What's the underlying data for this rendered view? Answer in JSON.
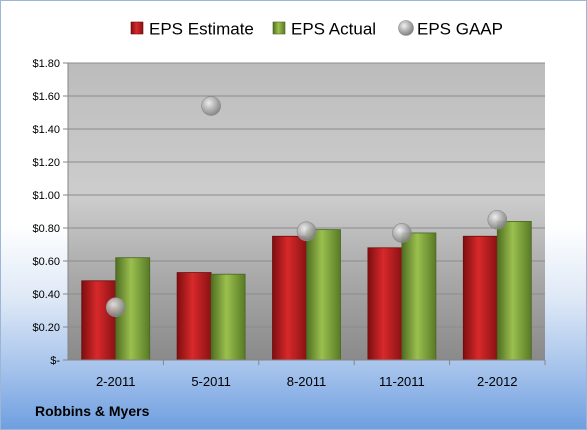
{
  "chart_data": {
    "type": "bar",
    "categories": [
      "2-2011",
      "5-2011",
      "8-2011",
      "11-2011",
      "2-2012"
    ],
    "series": [
      {
        "name": "EPS Estimate",
        "kind": "bar",
        "color": "#c0191c",
        "values": [
          0.48,
          0.53,
          0.75,
          0.68,
          0.75
        ]
      },
      {
        "name": "EPS Actual",
        "kind": "bar",
        "color": "#7fa33a",
        "values": [
          0.62,
          0.52,
          0.79,
          0.77,
          0.84
        ]
      },
      {
        "name": "EPS GAAP",
        "kind": "point",
        "color": "#a6a6a6",
        "values": [
          0.32,
          1.54,
          0.78,
          0.77,
          0.85
        ]
      }
    ],
    "ylim": [
      0,
      1.8
    ],
    "ytick_labels": [
      "$-",
      "$0.20",
      "$0.40",
      "$0.60",
      "$0.80",
      "$1.00",
      "$1.20",
      "$1.40",
      "$1.60",
      "$1.80"
    ],
    "grid": true,
    "legend_position": "top"
  },
  "footer": {
    "company": "Robbins & Myers"
  }
}
